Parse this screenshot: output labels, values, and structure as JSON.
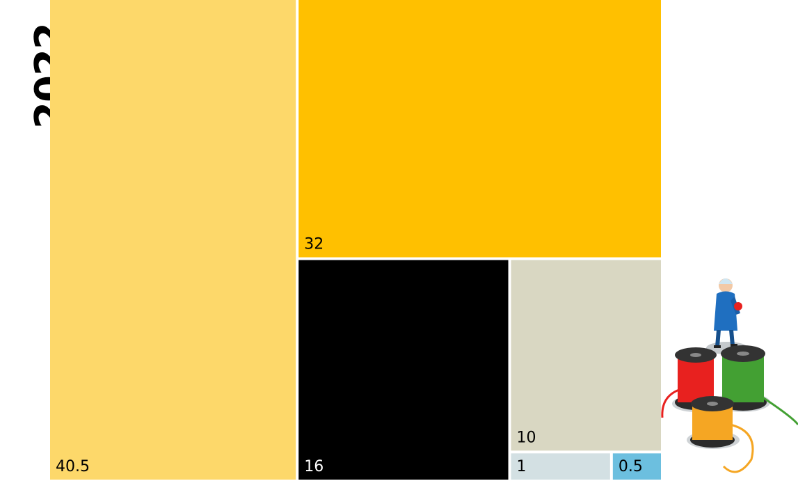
{
  "chart_data": {
    "type": "treemap",
    "title": "2022",
    "values": [
      40.5,
      32,
      16,
      10,
      1,
      0.5
    ],
    "colors": [
      "#fdd86a",
      "#ffc000",
      "#000000",
      "#d9d7c2",
      "#d3e0e3",
      "#6cbfdf"
    ],
    "label_colors": [
      "#000000",
      "#000000",
      "#ffffff",
      "#000000",
      "#000000",
      "#000000"
    ],
    "labels": [
      "40.5",
      "32",
      "16",
      "10",
      "1",
      "0.5"
    ]
  },
  "illustration": {
    "icon": "worker-with-thread-spools-icon",
    "colors": {
      "red": "#e8211f",
      "green": "#43a033",
      "orange": "#f5a623",
      "worker": "#1f6fc0"
    }
  }
}
